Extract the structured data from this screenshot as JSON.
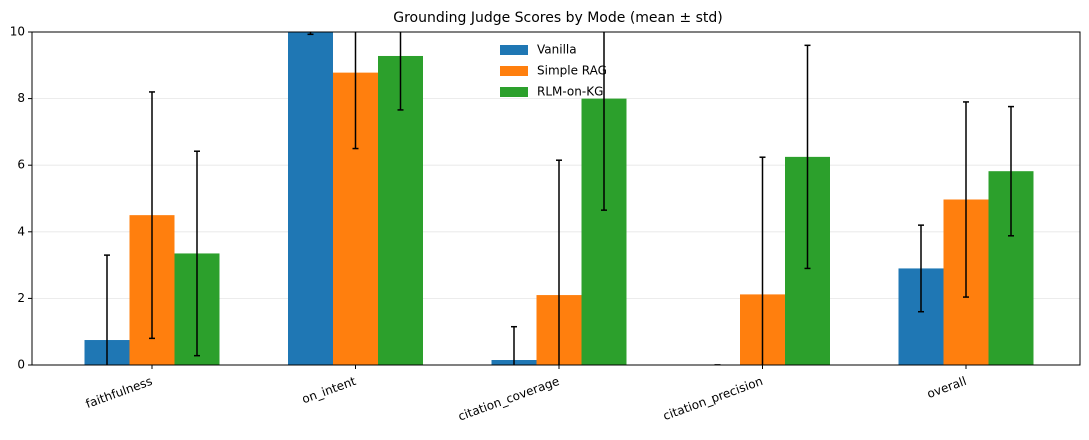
{
  "chart_data": {
    "type": "bar",
    "title": "Grounding Judge Scores by Mode (mean ± std)",
    "categories": [
      "faithfulness",
      "on_intent",
      "citation_coverage",
      "citation_precision",
      "overall"
    ],
    "series": [
      {
        "name": "Vanilla",
        "color": "#1f77b4",
        "values": [
          0.75,
          10,
          0.15,
          0,
          2.9
        ],
        "errors": [
          2.55,
          0.07,
          1.0,
          0,
          1.3
        ]
      },
      {
        "name": "Simple RAG",
        "color": "#ff7f0e",
        "values": [
          4.5,
          8.78,
          2.1,
          2.12,
          4.97
        ],
        "errors": [
          3.7,
          2.28,
          4.05,
          4.12,
          2.93
        ]
      },
      {
        "name": "RLM-on-KG",
        "color": "#2ca02c",
        "values": [
          3.35,
          9.28,
          8.0,
          6.25,
          5.82
        ],
        "errors": [
          3.07,
          1.62,
          3.35,
          3.35,
          1.94
        ]
      }
    ],
    "ylim": [
      0,
      10
    ],
    "yticks": [
      0,
      2,
      4,
      6,
      8,
      10
    ],
    "grid": true,
    "legend": "upper center"
  }
}
